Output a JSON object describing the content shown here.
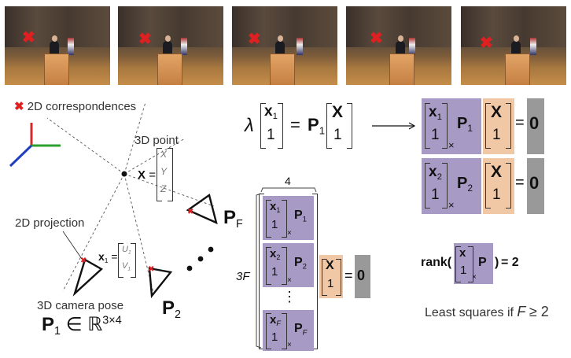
{
  "frames": [
    {
      "marker": "✖"
    },
    {
      "marker": "✖"
    },
    {
      "marker": "✖"
    },
    {
      "marker": "✖"
    },
    {
      "marker": "✖"
    }
  ],
  "legend": {
    "marker": "✖",
    "label": "2D correspondences"
  },
  "scene": {
    "point_label": "3D point",
    "X": "X",
    "eq": "=",
    "vX": "X",
    "vY": "Y",
    "vZ": "Z",
    "proj_label": "2D projection",
    "x1": "x",
    "one": "1",
    "u1": "U",
    "v1": "V",
    "pose_label": "3D camera pose",
    "P": "P",
    "in": "∈",
    "R": "ℝ",
    "dims": "3×4",
    "PF": "P",
    "F": "F",
    "P2": "P",
    "two": "2"
  },
  "colors": {
    "purple": "#a79ac5",
    "orange": "#f1c8a6",
    "gray": "#999999",
    "red": "#e02020",
    "axis_red": "#d62828",
    "axis_green": "#2ca02c",
    "axis_blue": "#1f3fbf"
  },
  "eq1": {
    "lambda": "λ",
    "x": "x",
    "one": "1",
    "eq": "=",
    "P": "P",
    "X": "X",
    "arrow": "⟶"
  },
  "stack": {
    "width": "4",
    "height_label": "3",
    "F": "F",
    "x": "x",
    "one": "1",
    "P": "P",
    "sub1": "1",
    "sub2": "2",
    "subF": "F",
    "times": "×",
    "vdots": "⋮",
    "X": "X",
    "eq": "=",
    "zero": "0"
  },
  "right": {
    "x": "x",
    "one": "1",
    "P": "P",
    "sub1": "1",
    "sub2": "2",
    "X": "X",
    "times": "×",
    "eq": "=",
    "zero": "0"
  },
  "rank": {
    "rank": "rank(",
    "x": "x",
    "one": "1",
    "times": "×",
    "P": "P",
    "close": ")",
    "eq": "= 2"
  },
  "lsq": {
    "text": "Least squares if",
    "F": "F",
    "geq": "≥ 2"
  }
}
